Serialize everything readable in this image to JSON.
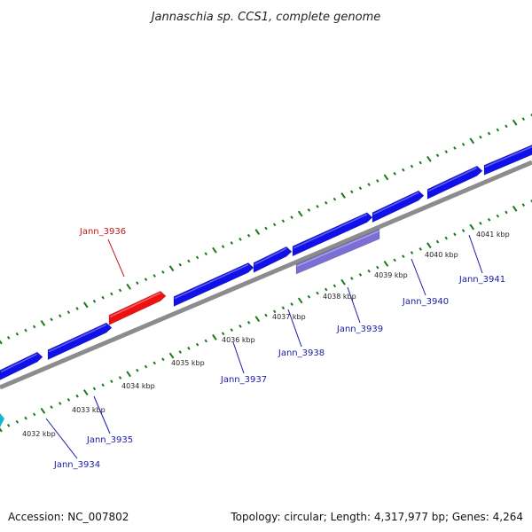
{
  "title": "Jannaschia sp. CCS1, complete genome",
  "footer": {
    "accession": "Accession: NC_007802",
    "summary": "Topology: circular; Length: 4,317,977 bp; Genes: 4,264"
  },
  "colors": {
    "forward_gene": "#1010e8",
    "selected_gene": "#ee1111",
    "reverse_highlight": "#7b6fd6",
    "partial_gene": "#11bbcc",
    "backbone": "#8c8c8c",
    "tick": "#1a7a1a",
    "gene_label": "#1a1aa8",
    "selected_label": "#c41818"
  },
  "kbp_ticks": [
    {
      "label": "4032 kbp",
      "position_kbp": 4032
    },
    {
      "label": "4033 kbp",
      "position_kbp": 4033
    },
    {
      "label": "4034 kbp",
      "position_kbp": 4034
    },
    {
      "label": "4035 kbp",
      "position_kbp": 4035
    },
    {
      "label": "4036 kbp",
      "position_kbp": 4036
    },
    {
      "label": "4037 kbp",
      "position_kbp": 4037
    },
    {
      "label": "4038 kbp",
      "position_kbp": 4038
    },
    {
      "label": "4039 kbp",
      "position_kbp": 4039
    },
    {
      "label": "4040 kbp",
      "position_kbp": 4040
    },
    {
      "label": "4041 kbp",
      "position_kbp": 4041
    }
  ],
  "gene_labels": [
    {
      "name": "Jann_3934",
      "selected": false
    },
    {
      "name": "Jann_3935",
      "selected": false
    },
    {
      "name": "Jann_3936",
      "selected": true
    },
    {
      "name": "Jann_3937",
      "selected": false
    },
    {
      "name": "Jann_3938",
      "selected": false
    },
    {
      "name": "Jann_3939",
      "selected": false
    },
    {
      "name": "Jann_3940",
      "selected": false
    },
    {
      "name": "Jann_3941",
      "selected": false
    }
  ]
}
